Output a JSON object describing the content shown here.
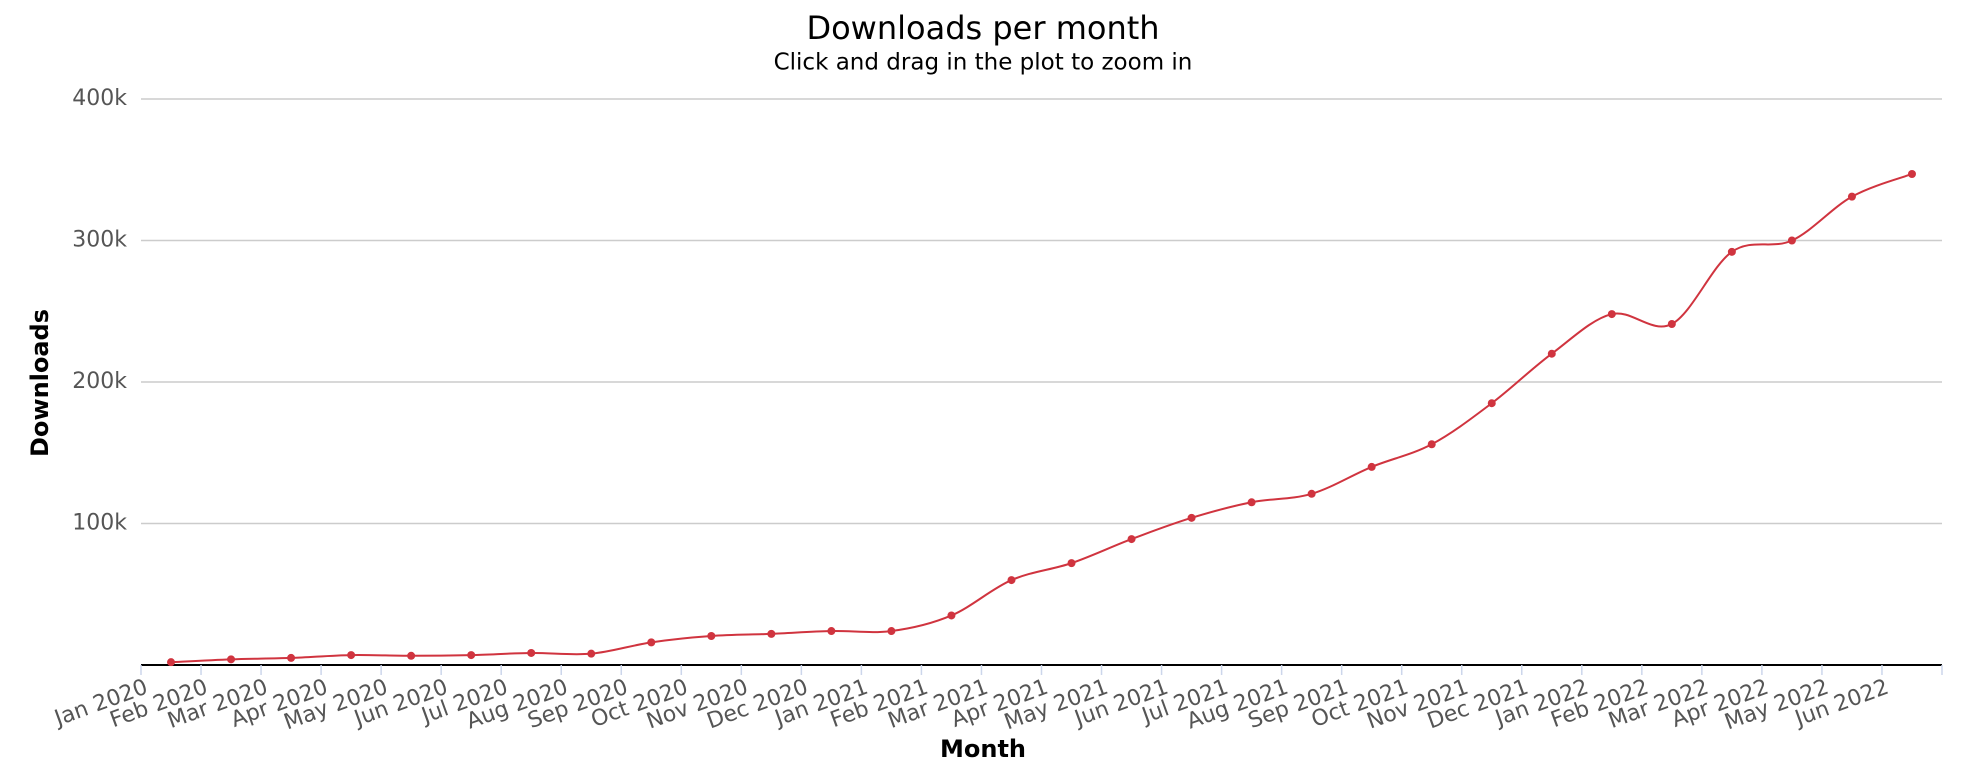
{
  "chart_data": {
    "type": "line",
    "title": "Downloads per month",
    "subtitle": "Click and drag in the plot to zoom in",
    "x_label": "Month",
    "y_label": "Downloads",
    "categories": [
      "Jan 2020",
      "Feb 2020",
      "Mar 2020",
      "Apr 2020",
      "May 2020",
      "Jun 2020",
      "Jul 2020",
      "Aug 2020",
      "Sep 2020",
      "Oct 2020",
      "Nov 2020",
      "Dec 2020",
      "Jan 2021",
      "Feb 2021",
      "Mar 2021",
      "Apr 2021",
      "May 2021",
      "Jun 2021",
      "Jul 2021",
      "Aug 2021",
      "Sep 2021",
      "Oct 2021",
      "Nov 2021",
      "Dec 2021",
      "Jan 2022",
      "Feb 2022",
      "Mar 2022",
      "Apr 2022",
      "May 2022",
      "Jun 2022"
    ],
    "series": [
      {
        "name": "Downloads",
        "color": "#d0343f",
        "values": [
          2000,
          4000,
          5000,
          7000,
          6500,
          7000,
          8500,
          8000,
          16000,
          20500,
          22000,
          24000,
          24000,
          35000,
          60000,
          72000,
          89000,
          104000,
          115000,
          121000,
          140000,
          156000,
          185000,
          220000,
          248000,
          241000,
          292000,
          300000,
          331000,
          347000
        ]
      }
    ],
    "ylim": [
      0,
      400000
    ],
    "yticks": [
      {
        "value": 100000,
        "label": "100k"
      },
      {
        "value": 200000,
        "label": "200k"
      },
      {
        "value": 300000,
        "label": "300k"
      },
      {
        "value": 400000,
        "label": "400k"
      }
    ],
    "grid": true
  }
}
